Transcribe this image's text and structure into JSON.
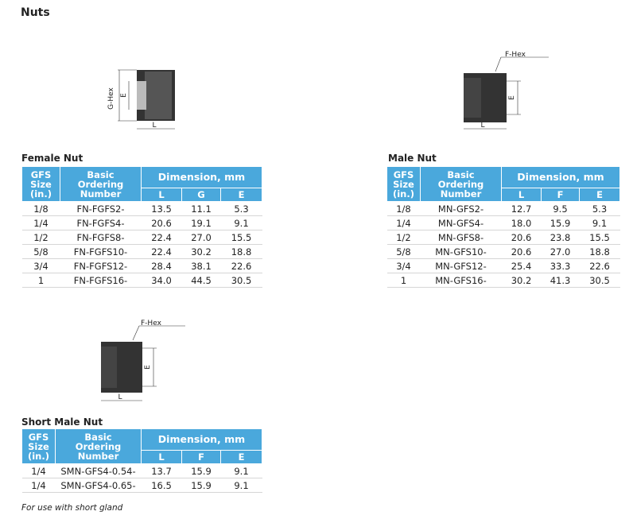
{
  "title": "Nuts",
  "sections": [
    {
      "heading": "Female Nut",
      "diagram_labels": [
        "G-Hex",
        "E",
        "L"
      ],
      "table": {
        "header_lines": [
          [
            "GFS",
            "Size",
            "(in.)"
          ],
          [
            "Basic",
            "Ordering",
            "Number"
          ]
        ],
        "group": "Dimension, mm",
        "subheaders": [
          "L",
          "G",
          "E"
        ],
        "rows": [
          [
            "1/8",
            "FN-FGFS2-",
            "13.5",
            "11.1",
            "5.3"
          ],
          [
            "1/4",
            "FN-FGFS4-",
            "20.6",
            "19.1",
            "9.1"
          ],
          [
            "1/2",
            "FN-FGFS8-",
            "22.4",
            "27.0",
            "15.5"
          ],
          [
            "5/8",
            "FN-FGFS10-",
            "22.4",
            "30.2",
            "18.8"
          ],
          [
            "3/4",
            "FN-FGFS12-",
            "28.4",
            "38.1",
            "22.6"
          ],
          [
            "1",
            "FN-FGFS16-",
            "34.0",
            "44.5",
            "30.5"
          ]
        ]
      }
    },
    {
      "heading": "Male Nut",
      "diagram_labels": [
        "F-Hex",
        "E",
        "L"
      ],
      "table": {
        "header_lines": [
          [
            "GFS",
            "Size",
            "(in.)"
          ],
          [
            "Basic",
            "Ordering",
            "Number"
          ]
        ],
        "group": "Dimension, mm",
        "subheaders": [
          "L",
          "F",
          "E"
        ],
        "rows": [
          [
            "1/8",
            "MN-GFS2-",
            "12.7",
            "9.5",
            "5.3"
          ],
          [
            "1/4",
            "MN-GFS4-",
            "18.0",
            "15.9",
            "9.1"
          ],
          [
            "1/2",
            "MN-GFS8-",
            "20.6",
            "23.8",
            "15.5"
          ],
          [
            "5/8",
            "MN-GFS10-",
            "20.6",
            "27.0",
            "18.8"
          ],
          [
            "3/4",
            "MN-GFS12-",
            "25.4",
            "33.3",
            "22.6"
          ],
          [
            "1",
            "MN-GFS16-",
            "30.2",
            "41.3",
            "30.5"
          ]
        ]
      }
    },
    {
      "heading": "Short Male Nut",
      "diagram_labels": [
        "F-Hex",
        "E",
        "L"
      ],
      "table": {
        "header_lines": [
          [
            "GFS",
            "Size",
            "(in.)"
          ],
          [
            "Basic",
            "Ordering",
            "Number"
          ]
        ],
        "group": "Dimension, mm",
        "subheaders": [
          "L",
          "F",
          "E"
        ],
        "rows": [
          [
            "1/4",
            "SMN-GFS4-0.54-",
            "13.7",
            "15.9",
            "9.1"
          ],
          [
            "1/4",
            "SMN-GFS4-0.65-",
            "16.5",
            "15.9",
            "9.1"
          ]
        ]
      }
    }
  ],
  "footnote": "For use with short gland"
}
